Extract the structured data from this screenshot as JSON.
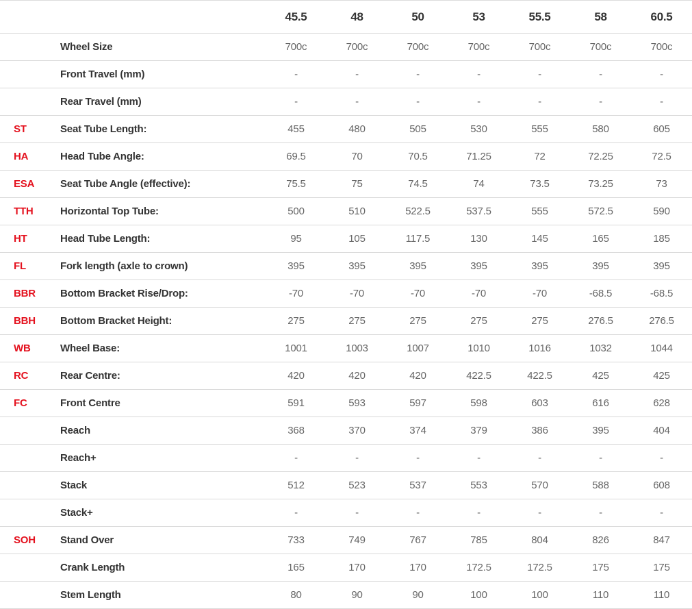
{
  "colors": {
    "abbr_red": "#e4111e",
    "label_dark": "#333333",
    "value_gray": "#666666",
    "divider": "#d9d9d9"
  },
  "table": {
    "size_headers": [
      "45.5",
      "48",
      "50",
      "53",
      "55.5",
      "58",
      "60.5"
    ],
    "rows": [
      {
        "abbr": "",
        "label": "Wheel Size",
        "values": [
          "700c",
          "700c",
          "700c",
          "700c",
          "700c",
          "700c",
          "700c"
        ]
      },
      {
        "abbr": "",
        "label": "Front Travel (mm)",
        "values": [
          "-",
          "-",
          "-",
          "-",
          "-",
          "-",
          "-"
        ]
      },
      {
        "abbr": "",
        "label": "Rear Travel (mm)",
        "values": [
          "-",
          "-",
          "-",
          "-",
          "-",
          "-",
          "-"
        ]
      },
      {
        "abbr": "ST",
        "label": "Seat Tube Length:",
        "values": [
          "455",
          "480",
          "505",
          "530",
          "555",
          "580",
          "605"
        ]
      },
      {
        "abbr": "HA",
        "label": "Head Tube Angle:",
        "values": [
          "69.5",
          "70",
          "70.5",
          "71.25",
          "72",
          "72.25",
          "72.5"
        ]
      },
      {
        "abbr": "ESA",
        "label": "Seat Tube Angle (effective):",
        "values": [
          "75.5",
          "75",
          "74.5",
          "74",
          "73.5",
          "73.25",
          "73"
        ]
      },
      {
        "abbr": "TTH",
        "label": "Horizontal Top Tube:",
        "values": [
          "500",
          "510",
          "522.5",
          "537.5",
          "555",
          "572.5",
          "590"
        ]
      },
      {
        "abbr": "HT",
        "label": "Head Tube Length:",
        "values": [
          "95",
          "105",
          "117.5",
          "130",
          "145",
          "165",
          "185"
        ]
      },
      {
        "abbr": "FL",
        "label": "Fork length (axle to crown)",
        "values": [
          "395",
          "395",
          "395",
          "395",
          "395",
          "395",
          "395"
        ]
      },
      {
        "abbr": "BBR",
        "label": "Bottom Bracket Rise/Drop:",
        "values": [
          "-70",
          "-70",
          "-70",
          "-70",
          "-70",
          "-68.5",
          "-68.5"
        ]
      },
      {
        "abbr": "BBH",
        "label": "Bottom Bracket Height:",
        "values": [
          "275",
          "275",
          "275",
          "275",
          "275",
          "276.5",
          "276.5"
        ]
      },
      {
        "abbr": "WB",
        "label": "Wheel Base:",
        "values": [
          "1001",
          "1003",
          "1007",
          "1010",
          "1016",
          "1032",
          "1044"
        ]
      },
      {
        "abbr": "RC",
        "label": "Rear Centre:",
        "values": [
          "420",
          "420",
          "420",
          "422.5",
          "422.5",
          "425",
          "425"
        ]
      },
      {
        "abbr": "FC",
        "label": "Front Centre",
        "values": [
          "591",
          "593",
          "597",
          "598",
          "603",
          "616",
          "628"
        ]
      },
      {
        "abbr": "",
        "label": "Reach",
        "values": [
          "368",
          "370",
          "374",
          "379",
          "386",
          "395",
          "404"
        ]
      },
      {
        "abbr": "",
        "label": "Reach+",
        "values": [
          "-",
          "-",
          "-",
          "-",
          "-",
          "-",
          "-"
        ]
      },
      {
        "abbr": "",
        "label": "Stack",
        "values": [
          "512",
          "523",
          "537",
          "553",
          "570",
          "588",
          "608"
        ]
      },
      {
        "abbr": "",
        "label": "Stack+",
        "values": [
          "-",
          "-",
          "-",
          "-",
          "-",
          "-",
          "-"
        ]
      },
      {
        "abbr": "SOH",
        "label": "Stand Over",
        "values": [
          "733",
          "749",
          "767",
          "785",
          "804",
          "826",
          "847"
        ]
      },
      {
        "abbr": "",
        "label": "Crank Length",
        "values": [
          "165",
          "170",
          "170",
          "172.5",
          "172.5",
          "175",
          "175"
        ]
      },
      {
        "abbr": "",
        "label": "Stem Length",
        "values": [
          "80",
          "90",
          "90",
          "100",
          "100",
          "110",
          "110"
        ]
      }
    ]
  }
}
